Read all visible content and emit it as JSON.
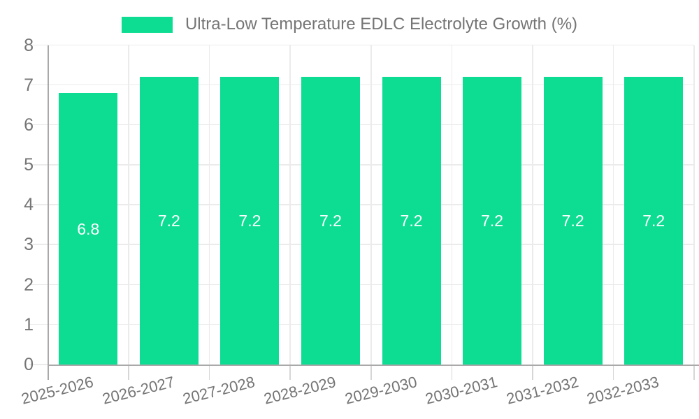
{
  "chart_data": {
    "type": "bar",
    "title": "Ultra-Low Temperature EDLC Electrolyte Growth (%)",
    "categories": [
      "2025-2026",
      "2026-2027",
      "2027-2028",
      "2028-2029",
      "2029-2030",
      "2030-2031",
      "2031-2032",
      "2032-2033"
    ],
    "values": [
      6.8,
      7.2,
      7.2,
      7.2,
      7.2,
      7.2,
      7.2,
      7.2
    ],
    "value_labels": [
      "6.8",
      "7.2",
      "7.2",
      "7.2",
      "7.2",
      "7.2",
      "7.2",
      "7.2"
    ],
    "y_ticks": [
      "0",
      "1",
      "2",
      "3",
      "4",
      "5",
      "6",
      "7",
      "8"
    ],
    "ylim": [
      0,
      8
    ],
    "xlabel": "",
    "ylabel": "",
    "grid": true,
    "legend_position": "top-center",
    "colors": {
      "bar": "#0cdd92",
      "text": "#757575",
      "value_label": "#ffffff",
      "gridline": "#ebebeb",
      "axis_line": "#a9a9a9",
      "tick": "#d6d6d6",
      "background": "#ffffff"
    }
  }
}
